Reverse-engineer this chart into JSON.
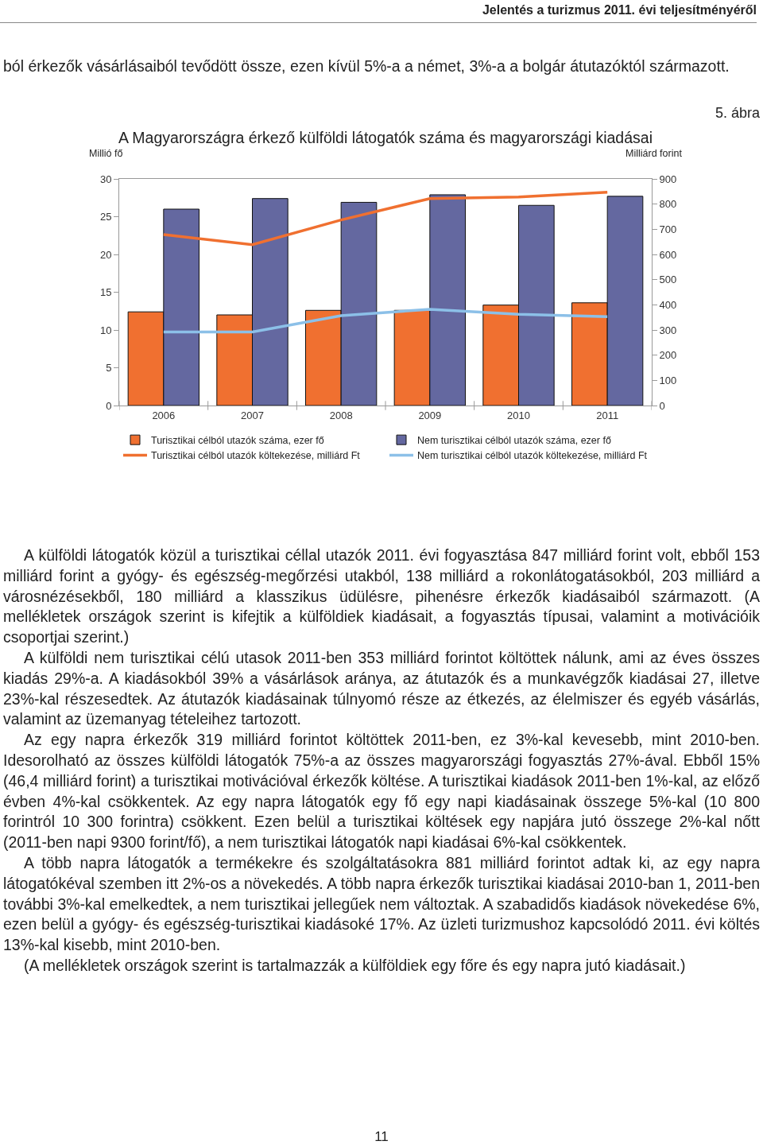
{
  "chart_data": {
    "type": "bar",
    "title": "A Magyarországra érkező külföldi látogatók száma és magyarországi kiadásai",
    "ylabel": "Millió fő",
    "y2label": "Milliárd forint",
    "categories": [
      "2006",
      "2007",
      "2008",
      "2009",
      "2010",
      "2011"
    ],
    "series": [
      {
        "name": "Turisztikai célból utazók száma, ezer fő",
        "color": "#f07030",
        "values": [
          12.4,
          12.0,
          12.6,
          12.6,
          13.3,
          13.6
        ]
      },
      {
        "name": "Nem turisztikai célból utazók száma, ezer fő",
        "color": "#6468a0",
        "values": [
          26.0,
          27.4,
          26.9,
          27.9,
          26.5,
          27.7
        ]
      },
      {
        "name": "Turisztikai célból utazók költekezése, milliárd Ft",
        "type": "line",
        "axis": "y2",
        "color": "#f07030",
        "values": [
          679,
          639,
          737,
          822,
          828,
          847
        ]
      },
      {
        "name": "Nem turisztikai célból utazók költekezése, milliárd Ft",
        "type": "line",
        "axis": "y2",
        "color": "#8cc0e8",
        "values": [
          292,
          292,
          357,
          382,
          362,
          353
        ]
      }
    ],
    "ylim": [
      0,
      30
    ],
    "yticks": [
      0,
      5,
      10,
      15,
      20,
      25,
      30
    ],
    "y2lim": [
      0,
      900
    ],
    "y2ticks": [
      0,
      100,
      200,
      300,
      400,
      500,
      600,
      700,
      800,
      900
    ],
    "grid": false,
    "legend": "bottom",
    "marker": "none",
    "line_style": "solid",
    "annotations": [
      "Jelentés a turizmus 2011. évi teljesítményéről",
      "ból érkezők vásárlásaiból tevődött össze, ezen kívül 5%-a a német, 3%-a a bolgár átutazóktól származott.",
      "5. ábra",
      "A külföldi látogatók közül a turisztikai céllal utazók 2011. évi fogyasztása 847 milliárd forint volt, ebből 153 milliárd forint a gyógy- és egészség-megőrzési utakból, 138 milliárd a rokonlátogatásokból, 203 milliárd a városnézésekből, 180 milliárd a klasszikus üdülésre, pihenésre érkezők kiadásaiból származott. (A mellékletek országok szerint is kifejtik a külföldiek kiadásait, a fogyasztás típusai, valamint a motivációik csoportjai szerint.)",
      "A külföldi nem turisztikai célú utasok 2011-ben 353 milliárd forintot költöttek nálunk, ami az éves összes kiadás 29%-a. A kiadásokból 39% a vásárlások aránya, az átutazók és a munkavégzők kiadásai 27, illetve 23%-kal részesedtek. Az átutazók kiadásainak túlnyomó része az étkezés, az élelmiszer és egyéb vásárlás, valamint az üzemanyag tételeihez tartozott.",
      "Az egy napra érkezők 319 milliárd forintot költöttek 2011-ben, ez 3%-kal kevesebb, mint 2010-ben. Idesorolható az összes külföldi látogatók 75%-a az összes magyarországi fogyasztás 27%-ával. Ebből 15% (46,4 milliárd forint) a turisztikai motivációval érkezők költése. A turisztikai kiadások 2011-ben 1%-kal, az előző évben 4%-kal csökkentek. Az egy napra látogatók egy fő egy napi kiadásainak összege 5%-kal (10 800 forintról 10 300 forintra) csökkent. Ezen belül a turisztikai költések egy napjára jutó összege 2%-kal nőtt (2011-ben napi 9300 forint/fő), a nem turisztikai látogatók napi kiadásai 6%-kal csökkentek.",
      "A több napra látogatók a termékekre és szolgáltatásokra 881 milliárd forintot adtak ki, az egy napra látogatókéval szemben itt 2%-os a növekedés. A több napra érkezők turisztikai kiadásai 2010-ban 1, 2011-ben további 3%-kal emelkedtek, a nem turisztikai jellegűek nem változtak. A szabadidős kiadások növekedése 6%, ezen belül a gyógy- és egészség-turisztikai kiadásoké 17%. Az üzleti turizmushoz kapcsolódó 2011. évi költés 13%-kal kisebb, mint 2010-ben.",
      "(A mellékletek országok szerint is tartalmazzák a külföldiek egy főre és egy napra jutó kiadásait.)",
      "11"
    ]
  }
}
